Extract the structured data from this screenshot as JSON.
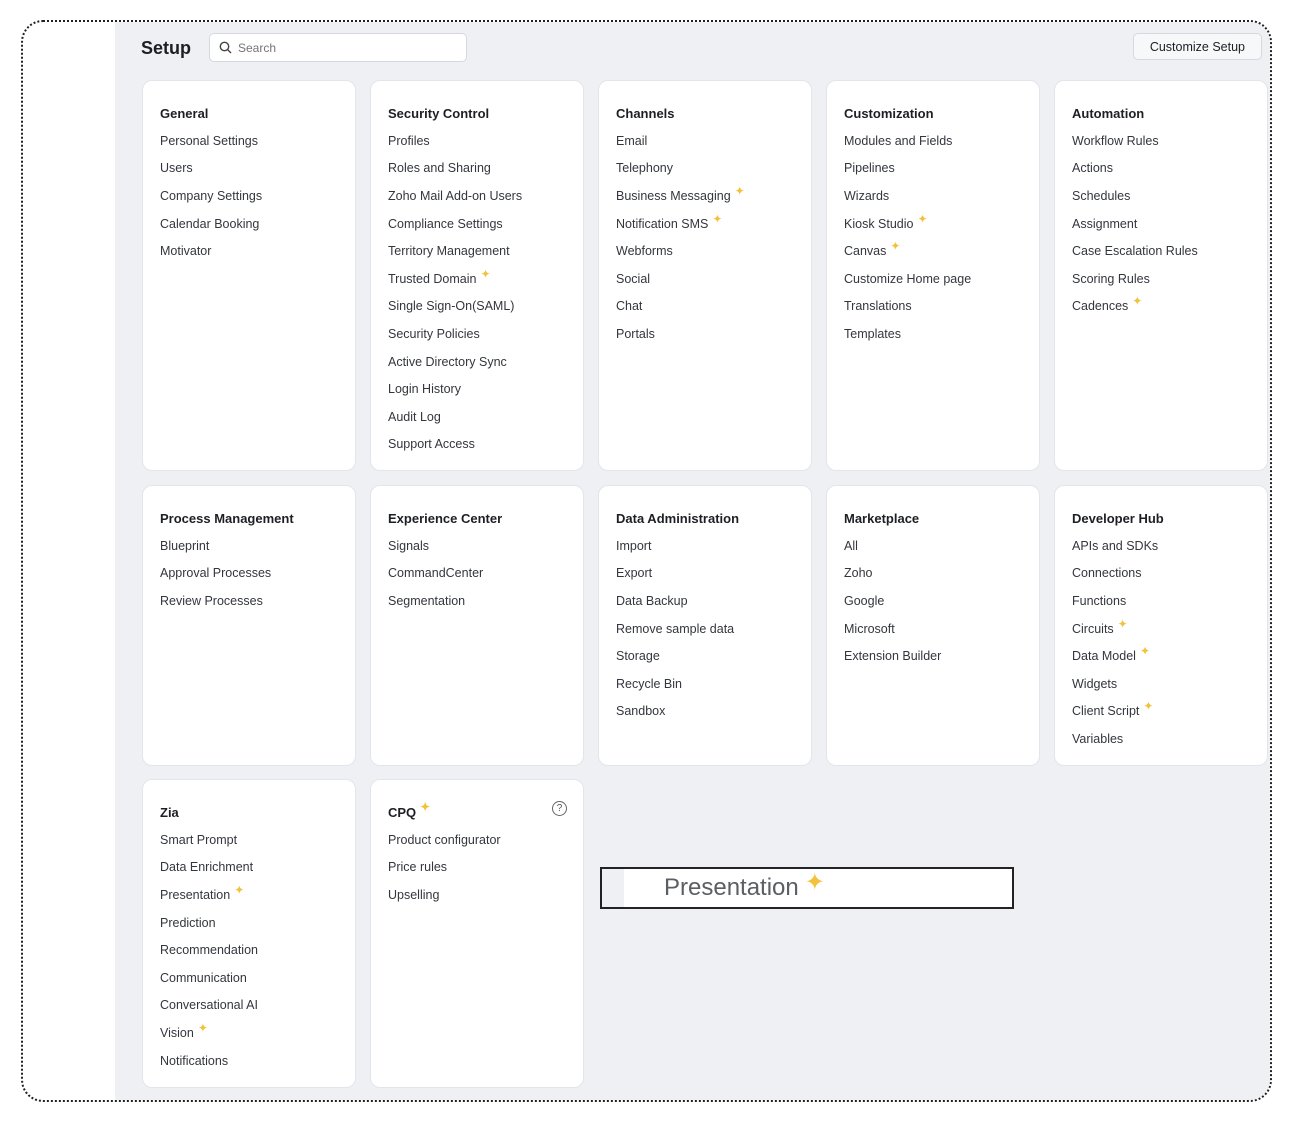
{
  "header": {
    "title": "Setup",
    "search_placeholder": "Search",
    "customize_label": "Customize Setup"
  },
  "colors": {
    "sparkle": "#f2c23a",
    "background": "#eef0f4"
  },
  "cards": [
    {
      "title": "General",
      "items": [
        {
          "label": "Personal Settings"
        },
        {
          "label": "Users"
        },
        {
          "label": "Company Settings"
        },
        {
          "label": "Calendar Booking"
        },
        {
          "label": "Motivator"
        }
      ]
    },
    {
      "title": "Security Control",
      "items": [
        {
          "label": "Profiles"
        },
        {
          "label": "Roles and Sharing"
        },
        {
          "label": "Zoho Mail Add-on Users"
        },
        {
          "label": "Compliance Settings"
        },
        {
          "label": "Territory Management"
        },
        {
          "label": "Trusted Domain",
          "new": true
        },
        {
          "label": "Single Sign-On(SAML)"
        },
        {
          "label": "Security Policies"
        },
        {
          "label": "Active Directory Sync"
        },
        {
          "label": "Login History"
        },
        {
          "label": "Audit Log"
        },
        {
          "label": "Support Access"
        }
      ]
    },
    {
      "title": "Channels",
      "items": [
        {
          "label": "Email"
        },
        {
          "label": "Telephony"
        },
        {
          "label": "Business Messaging",
          "new": true
        },
        {
          "label": "Notification SMS",
          "new": true
        },
        {
          "label": "Webforms"
        },
        {
          "label": "Social"
        },
        {
          "label": "Chat"
        },
        {
          "label": "Portals"
        }
      ]
    },
    {
      "title": "Customization",
      "items": [
        {
          "label": "Modules and Fields"
        },
        {
          "label": "Pipelines"
        },
        {
          "label": "Wizards"
        },
        {
          "label": "Kiosk Studio",
          "new": true
        },
        {
          "label": "Canvas",
          "new": true
        },
        {
          "label": "Customize Home page"
        },
        {
          "label": "Translations"
        },
        {
          "label": "Templates"
        }
      ]
    },
    {
      "title": "Automation",
      "items": [
        {
          "label": "Workflow Rules"
        },
        {
          "label": "Actions"
        },
        {
          "label": "Schedules"
        },
        {
          "label": "Assignment"
        },
        {
          "label": "Case Escalation Rules"
        },
        {
          "label": "Scoring Rules"
        },
        {
          "label": "Cadences",
          "new": true
        }
      ]
    },
    {
      "title": "Process Management",
      "items": [
        {
          "label": "Blueprint"
        },
        {
          "label": "Approval Processes"
        },
        {
          "label": "Review Processes"
        }
      ]
    },
    {
      "title": "Experience Center",
      "items": [
        {
          "label": "Signals"
        },
        {
          "label": "CommandCenter"
        },
        {
          "label": "Segmentation"
        }
      ]
    },
    {
      "title": "Data Administration",
      "items": [
        {
          "label": "Import"
        },
        {
          "label": "Export"
        },
        {
          "label": "Data Backup"
        },
        {
          "label": "Remove sample data"
        },
        {
          "label": "Storage"
        },
        {
          "label": "Recycle Bin"
        },
        {
          "label": "Sandbox"
        }
      ]
    },
    {
      "title": "Marketplace",
      "items": [
        {
          "label": "All"
        },
        {
          "label": "Zoho"
        },
        {
          "label": "Google"
        },
        {
          "label": "Microsoft"
        },
        {
          "label": "Extension Builder"
        }
      ]
    },
    {
      "title": "Developer Hub",
      "items": [
        {
          "label": "APIs and SDKs"
        },
        {
          "label": "Connections"
        },
        {
          "label": "Functions"
        },
        {
          "label": "Circuits",
          "new": true
        },
        {
          "label": "Data Model",
          "new": true
        },
        {
          "label": "Widgets"
        },
        {
          "label": "Client Script",
          "new": true
        },
        {
          "label": "Variables"
        }
      ]
    },
    {
      "title": "Zia",
      "items": [
        {
          "label": "Smart Prompt"
        },
        {
          "label": "Data Enrichment"
        },
        {
          "label": "Presentation",
          "new": true
        },
        {
          "label": "Prediction"
        },
        {
          "label": "Recommendation"
        },
        {
          "label": "Communication"
        },
        {
          "label": "Conversational AI"
        },
        {
          "label": "Vision",
          "new": true
        },
        {
          "label": "Notifications"
        }
      ]
    },
    {
      "title": "CPQ",
      "new": true,
      "help": true,
      "items": [
        {
          "label": "Product configurator"
        },
        {
          "label": "Price rules"
        },
        {
          "label": "Upselling"
        }
      ]
    }
  ],
  "zoom_overlay": {
    "label": "Presentation"
  }
}
